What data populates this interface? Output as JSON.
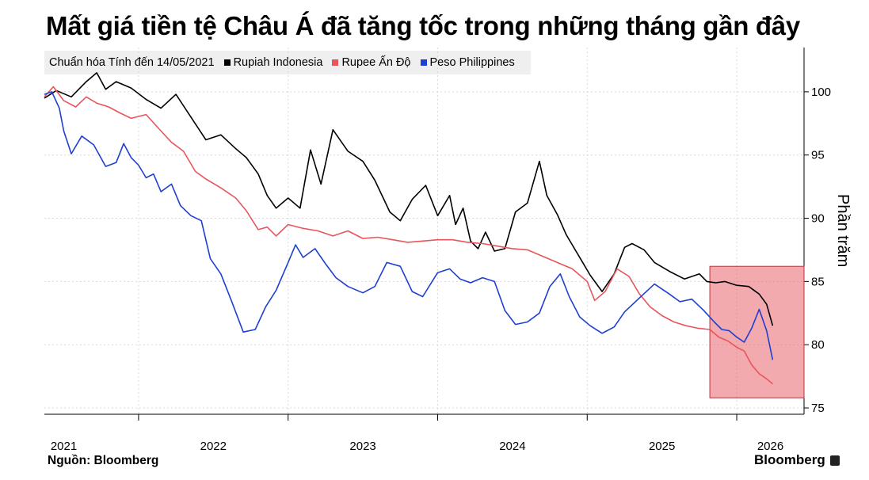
{
  "title": "Mất giá tiền tệ Châu Á đã tăng tốc trong những tháng gần đây",
  "legend": {
    "note": "Chuẩn hóa Tính đến 14/05/2021",
    "items": [
      {
        "label": "Rupiah Indonesia",
        "color": "#000000"
      },
      {
        "label": "Rupee Ấn Độ",
        "color": "#e8555d"
      },
      {
        "label": "Peso Philippines",
        "color": "#1f3fd0"
      }
    ]
  },
  "unit_label": "Phần trăm",
  "source": "Nguồn: Bloomberg",
  "brand": "Bloomberg",
  "chart_data": {
    "type": "line",
    "x_ticks": [
      "2021",
      "2022",
      "2023",
      "2024",
      "2025",
      "2026"
    ],
    "y_ticks": [
      75,
      80,
      85,
      90,
      95,
      100
    ],
    "ylim": [
      74.5,
      103.5
    ],
    "xlim": [
      2021.37,
      2026.45
    ],
    "grid": true,
    "highlight": {
      "x": [
        2025.82,
        2026.45
      ],
      "y": [
        75.8,
        86.2
      ],
      "color": "#e8555d"
    },
    "series": [
      {
        "name": "Rupiah Indonesia",
        "color": "#000000",
        "x": [
          2021.37,
          2021.45,
          2021.55,
          2021.65,
          2021.72,
          2021.78,
          2021.85,
          2021.95,
          2022.05,
          2022.15,
          2022.25,
          2022.35,
          2022.45,
          2022.55,
          2022.65,
          2022.72,
          2022.8,
          2022.86,
          2022.92,
          2023.0,
          2023.08,
          2023.15,
          2023.22,
          2023.3,
          2023.4,
          2023.5,
          2023.58,
          2023.68,
          2023.75,
          2023.83,
          2023.92,
          2024.0,
          2024.08,
          2024.12,
          2024.17,
          2024.22,
          2024.27,
          2024.32,
          2024.38,
          2024.45,
          2024.52,
          2024.6,
          2024.68,
          2024.73,
          2024.8,
          2024.86,
          2024.9,
          2024.96,
          2025.02,
          2025.1,
          2025.18,
          2025.25,
          2025.3,
          2025.38,
          2025.45,
          2025.55,
          2025.65,
          2025.75,
          2025.8,
          2025.86,
          2025.92,
          2026.0,
          2026.08,
          2026.15,
          2026.2,
          2026.24
        ],
        "y": [
          99.5,
          100.1,
          99.6,
          100.8,
          101.5,
          100.2,
          100.8,
          100.3,
          99.4,
          98.7,
          99.8,
          98.0,
          96.2,
          96.6,
          95.5,
          94.8,
          93.5,
          91.8,
          90.8,
          91.6,
          90.8,
          95.4,
          92.7,
          97.0,
          95.3,
          94.5,
          93.0,
          90.5,
          89.8,
          91.5,
          92.6,
          90.2,
          91.8,
          89.5,
          90.8,
          88.2,
          87.6,
          88.9,
          87.4,
          87.6,
          90.5,
          91.2,
          94.5,
          91.8,
          90.3,
          88.7,
          87.9,
          86.7,
          85.5,
          84.2,
          85.6,
          87.7,
          88.0,
          87.5,
          86.5,
          85.8,
          85.2,
          85.6,
          85.0,
          84.9,
          85.0,
          84.7,
          84.6,
          84.0,
          83.2,
          81.5
        ]
      },
      {
        "name": "Rupee Ấn Độ",
        "color": "#e8555d",
        "x": [
          2021.37,
          2021.43,
          2021.5,
          2021.58,
          2021.65,
          2021.72,
          2021.8,
          2021.88,
          2021.95,
          2022.05,
          2022.15,
          2022.22,
          2022.3,
          2022.38,
          2022.45,
          2022.55,
          2022.65,
          2022.72,
          2022.8,
          2022.86,
          2022.92,
          2023.0,
          2023.1,
          2023.2,
          2023.3,
          2023.4,
          2023.5,
          2023.6,
          2023.7,
          2023.8,
          2023.9,
          2024.0,
          2024.1,
          2024.2,
          2024.3,
          2024.4,
          2024.5,
          2024.6,
          2024.7,
          2024.8,
          2024.9,
          2025.0,
          2025.05,
          2025.12,
          2025.2,
          2025.28,
          2025.35,
          2025.42,
          2025.5,
          2025.58,
          2025.66,
          2025.74,
          2025.82,
          2025.88,
          2025.94,
          2026.0,
          2026.05,
          2026.1,
          2026.15,
          2026.2,
          2026.24
        ],
        "y": [
          99.6,
          100.4,
          99.3,
          98.8,
          99.6,
          99.1,
          98.8,
          98.3,
          97.9,
          98.2,
          96.9,
          96.0,
          95.3,
          93.7,
          93.1,
          92.4,
          91.6,
          90.6,
          89.1,
          89.3,
          88.6,
          89.5,
          89.2,
          89.0,
          88.6,
          89.0,
          88.4,
          88.5,
          88.3,
          88.1,
          88.2,
          88.3,
          88.3,
          88.1,
          88.0,
          87.8,
          87.6,
          87.5,
          87.0,
          86.5,
          86.0,
          85.0,
          83.5,
          84.2,
          86.0,
          85.4,
          84.0,
          83.0,
          82.3,
          81.8,
          81.5,
          81.3,
          81.2,
          80.6,
          80.3,
          79.8,
          79.5,
          78.4,
          77.7,
          77.3,
          76.9
        ]
      },
      {
        "name": "Peso Philippines",
        "color": "#1f3fd0",
        "x": [
          2021.37,
          2021.42,
          2021.47,
          2021.5,
          2021.55,
          2021.62,
          2021.7,
          2021.78,
          2021.85,
          2021.9,
          2021.95,
          2022.0,
          2022.05,
          2022.1,
          2022.15,
          2022.22,
          2022.28,
          2022.35,
          2022.42,
          2022.48,
          2022.55,
          2022.62,
          2022.7,
          2022.78,
          2022.85,
          2022.92,
          2023.0,
          2023.05,
          2023.1,
          2023.18,
          2023.25,
          2023.32,
          2023.4,
          2023.5,
          2023.58,
          2023.66,
          2023.75,
          2023.83,
          2023.9,
          2024.0,
          2024.08,
          2024.15,
          2024.22,
          2024.3,
          2024.38,
          2024.45,
          2024.52,
          2024.6,
          2024.68,
          2024.75,
          2024.82,
          2024.88,
          2024.95,
          2025.02,
          2025.1,
          2025.18,
          2025.25,
          2025.35,
          2025.45,
          2025.55,
          2025.62,
          2025.7,
          2025.78,
          2025.85,
          2025.9,
          2025.95,
          2026.0,
          2026.05,
          2026.1,
          2026.15,
          2026.2,
          2026.24
        ],
        "y": [
          99.8,
          100.0,
          98.7,
          96.9,
          95.1,
          96.5,
          95.8,
          94.1,
          94.4,
          95.9,
          94.8,
          94.2,
          93.2,
          93.5,
          92.1,
          92.7,
          91.0,
          90.2,
          89.8,
          86.8,
          85.6,
          83.5,
          81.0,
          81.2,
          83.0,
          84.3,
          86.5,
          87.9,
          86.9,
          87.6,
          86.4,
          85.3,
          84.6,
          84.1,
          84.6,
          86.5,
          86.2,
          84.2,
          83.8,
          85.7,
          86.0,
          85.2,
          84.9,
          85.3,
          85.0,
          82.7,
          81.6,
          81.8,
          82.5,
          84.6,
          85.6,
          83.8,
          82.2,
          81.5,
          80.9,
          81.4,
          82.6,
          83.7,
          84.8,
          84.0,
          83.4,
          83.6,
          82.7,
          81.8,
          81.2,
          81.1,
          80.6,
          80.2,
          81.3,
          82.8,
          81.1,
          78.8
        ]
      }
    ]
  }
}
